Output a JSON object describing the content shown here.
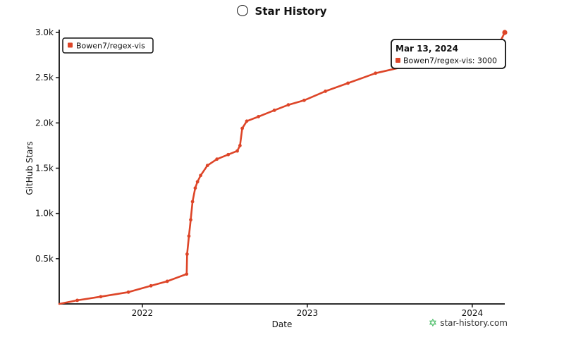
{
  "chart_data": {
    "type": "line",
    "title": "Star History",
    "xlabel": "Date",
    "ylabel": "GitHub Stars",
    "x_ticks": [
      "2022",
      "2023",
      "2024"
    ],
    "y_ticks": [
      "0.5k",
      "1.0k",
      "1.5k",
      "2.0k",
      "2.5k",
      "3.0k"
    ],
    "ylim": [
      0,
      3000
    ],
    "xlim": [
      "2021-07-01",
      "2024-03-13"
    ],
    "grid": false,
    "legend_position": "top-left",
    "series": [
      {
        "name": "Bowen7/regex-vis",
        "color": "#dd4528",
        "x": [
          "2021-07-01",
          "2021-08-10",
          "2021-10-01",
          "2021-12-01",
          "2022-01-20",
          "2022-02-25",
          "2022-04-09",
          "2022-04-10",
          "2022-04-14",
          "2022-04-18",
          "2022-04-22",
          "2022-04-28",
          "2022-05-03",
          "2022-05-10",
          "2022-05-25",
          "2022-06-15",
          "2022-07-10",
          "2022-07-30",
          "2022-08-05",
          "2022-08-10",
          "2022-08-20",
          "2022-09-15",
          "2022-10-20",
          "2022-11-20",
          "2022-12-25",
          "2023-02-10",
          "2023-04-01",
          "2023-06-01",
          "2023-08-01",
          "2023-09-15",
          "2023-10-15",
          "2023-11-15",
          "2023-12-20",
          "2024-01-20",
          "2024-02-10",
          "2024-03-01",
          "2024-03-13"
        ],
        "values": [
          0,
          40,
          80,
          130,
          200,
          250,
          330,
          550,
          750,
          930,
          1130,
          1280,
          1350,
          1420,
          1530,
          1600,
          1650,
          1690,
          1750,
          1940,
          2020,
          2070,
          2140,
          2200,
          2250,
          2350,
          2440,
          2550,
          2620,
          2660,
          2690,
          2720,
          2760,
          2800,
          2840,
          2880,
          3000
        ]
      }
    ]
  },
  "tooltip": {
    "date": "Mar 13, 2024",
    "entry": "Bowen7/regex-vis: 3000"
  },
  "watermark": "star-history.com"
}
